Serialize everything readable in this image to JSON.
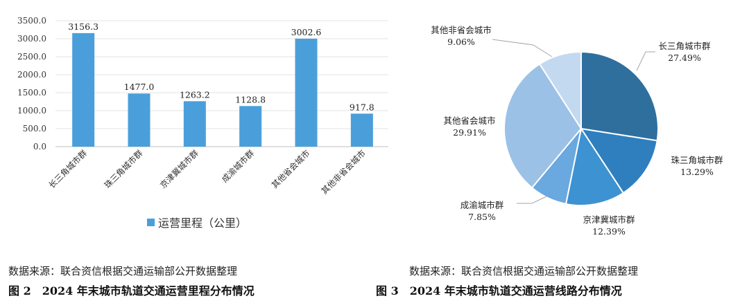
{
  "chart_data": [
    {
      "type": "bar",
      "categories": [
        "长三角城市群",
        "珠三角城市群",
        "京津冀城市群",
        "成渝城市群",
        "其他省会城市",
        "其他非省会城市"
      ],
      "series": [
        {
          "name": "运营里程（公里）",
          "values": [
            3156.3,
            1477.0,
            1263.2,
            1128.8,
            3002.6,
            917.8
          ]
        }
      ],
      "data_labels": [
        "3156.3",
        "1477.0",
        "1263.2",
        "1128.8",
        "3002.6",
        "917.8"
      ],
      "yticks": [
        "0.0",
        "500.0",
        "1000.0",
        "1500.0",
        "2000.0",
        "2500.0",
        "3000.0",
        "3500.0"
      ],
      "ylim": [
        0,
        3500
      ],
      "grid": true,
      "legend": "bottom",
      "color": "#4a9fdb"
    },
    {
      "type": "pie",
      "slices": [
        {
          "label": "长三角城市群",
          "value": 27.49,
          "pct_label": "27.49%",
          "color": "#2e6f9e"
        },
        {
          "label": "珠三角城市群",
          "value": 13.29,
          "pct_label": "13.29%",
          "color": "#2f7fbf"
        },
        {
          "label": "京津冀城市群",
          "value": 12.39,
          "pct_label": "12.39%",
          "color": "#3d92d1"
        },
        {
          "label": "成渝城市群",
          "value": 7.85,
          "pct_label": "7.85%",
          "color": "#6aa8e0"
        },
        {
          "label": "其他省会城市",
          "value": 29.91,
          "pct_label": "29.91%",
          "color": "#9cc1e6"
        },
        {
          "label": "其他非省会城市",
          "value": 9.06,
          "pct_label": "9.06%",
          "color": "#c3d9ef"
        }
      ]
    }
  ],
  "source_left": "数据来源：联合资信根据交通运输部公开数据整理",
  "source_right": "数据来源：联合资信根据交通运输部公开数据整理",
  "caption_left": "图 2　2024 年末城市轨道交通运营里程分布情况",
  "caption_right": "图 3　2024 年末城市轨道交通运营线路分布情况"
}
